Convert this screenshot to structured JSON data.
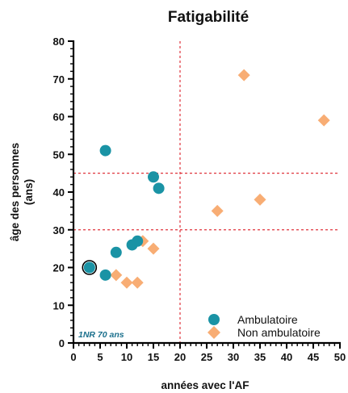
{
  "chart_data": {
    "type": "scatter",
    "title": "Fatigabilité",
    "xlabel": "années avec l'AF",
    "ylabel": [
      "âge des personnes",
      "(ans)"
    ],
    "xlim": [
      0,
      50
    ],
    "ylim": [
      0,
      80
    ],
    "x_ticks": [
      "0",
      "5",
      "10",
      "15",
      "20",
      "25",
      "30",
      "35",
      "40",
      "45",
      "50"
    ],
    "y_ticks": [
      "0",
      "10",
      "20",
      "30",
      "40",
      "50",
      "60",
      "70",
      "80"
    ],
    "grid": false,
    "legend_position": "bottom-right",
    "reference_lines": {
      "vertical_x": [
        20
      ],
      "horizontal_y": [
        30,
        45
      ],
      "color": "#e0343c",
      "style": "dashed"
    },
    "series": [
      {
        "name": "Ambulatoire",
        "marker": "circle",
        "color": "#1a93a5",
        "points": [
          {
            "x": 6,
            "y": 51
          },
          {
            "x": 15,
            "y": 44
          },
          {
            "x": 16,
            "y": 41
          },
          {
            "x": 11,
            "y": 26
          },
          {
            "x": 12,
            "y": 27
          },
          {
            "x": 8,
            "y": 24
          },
          {
            "x": 3,
            "y": 20
          },
          {
            "x": 6,
            "y": 18
          }
        ],
        "highlighted_point": {
          "x": 3,
          "y": 20
        }
      },
      {
        "name": "Non ambulatoire",
        "marker": "diamond",
        "color": "#f8ad74",
        "points": [
          {
            "x": 32,
            "y": 71
          },
          {
            "x": 47,
            "y": 59
          },
          {
            "x": 35,
            "y": 38
          },
          {
            "x": 27,
            "y": 35
          },
          {
            "x": 15,
            "y": 25
          },
          {
            "x": 13,
            "y": 27
          },
          {
            "x": 8,
            "y": 18
          },
          {
            "x": 10,
            "y": 16
          },
          {
            "x": 12,
            "y": 16
          }
        ]
      }
    ],
    "annotation": {
      "text": "1NR 70 ans",
      "color": "#1a6f8c"
    }
  }
}
